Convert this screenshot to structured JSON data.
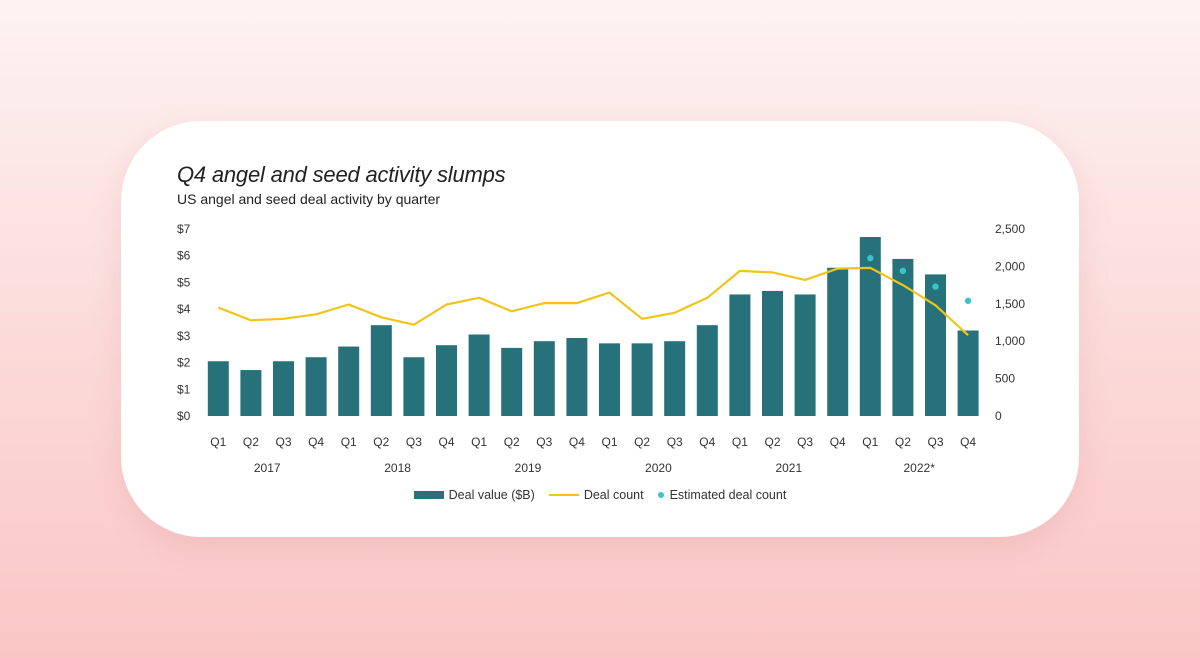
{
  "title": "Q4 angel and seed activity slumps",
  "subtitle": "US angel and seed deal activity by quarter",
  "colors": {
    "bar": "#27727a",
    "line": "#f0c419",
    "estimate": "#3cc3c6",
    "text": "#333333"
  },
  "legend": {
    "bars": "Deal value ($B)",
    "line": "Deal count",
    "estimate": "Estimated deal count"
  },
  "chart_data": {
    "type": "bar",
    "title": "Q4 angel and seed activity slumps",
    "subtitle": "US angel and seed deal activity by quarter",
    "categories": [
      "Q1",
      "Q2",
      "Q3",
      "Q4",
      "Q1",
      "Q2",
      "Q3",
      "Q4",
      "Q1",
      "Q2",
      "Q3",
      "Q4",
      "Q1",
      "Q2",
      "Q3",
      "Q4",
      "Q1",
      "Q2",
      "Q3",
      "Q4",
      "Q1",
      "Q2",
      "Q3",
      "Q4"
    ],
    "year_groups": [
      {
        "label": "2017",
        "start": 0,
        "end": 3
      },
      {
        "label": "2018",
        "start": 4,
        "end": 7
      },
      {
        "label": "2019",
        "start": 8,
        "end": 11
      },
      {
        "label": "2020",
        "start": 12,
        "end": 15
      },
      {
        "label": "2021",
        "start": 16,
        "end": 19
      },
      {
        "label": "2022*",
        "start": 20,
        "end": 23
      }
    ],
    "series": [
      {
        "name": "Deal value ($B)",
        "type": "bar",
        "axis": "left",
        "values": [
          2.05,
          1.72,
          2.05,
          2.2,
          2.6,
          3.4,
          2.2,
          2.65,
          3.05,
          2.55,
          2.8,
          2.92,
          2.72,
          2.72,
          2.8,
          3.4,
          4.55,
          4.68,
          4.55,
          5.55,
          6.7,
          5.88,
          5.3,
          3.2
        ]
      },
      {
        "name": "Deal count",
        "type": "line",
        "axis": "right",
        "values": [
          1450,
          1280,
          1300,
          1360,
          1490,
          1320,
          1220,
          1490,
          1580,
          1400,
          1510,
          1510,
          1650,
          1300,
          1380,
          1580,
          1940,
          1920,
          1820,
          1970,
          1980,
          1750,
          1480,
          1080
        ]
      },
      {
        "name": "Estimated deal count",
        "type": "scatter",
        "axis": "right",
        "x_index": [
          20,
          21,
          22,
          23
        ],
        "values": [
          2110,
          1940,
          1730,
          1540
        ]
      }
    ],
    "y_left": {
      "ticks": [
        "$0",
        "$1",
        "$2",
        "$3",
        "$4",
        "$5",
        "$6",
        "$7"
      ],
      "min": 0,
      "max": 7
    },
    "y_right": {
      "ticks": [
        "0",
        "500",
        "1,000",
        "1,500",
        "2,000",
        "2,500"
      ],
      "min": 0,
      "max": 2500
    },
    "grid": false,
    "legend_position": "bottom"
  }
}
